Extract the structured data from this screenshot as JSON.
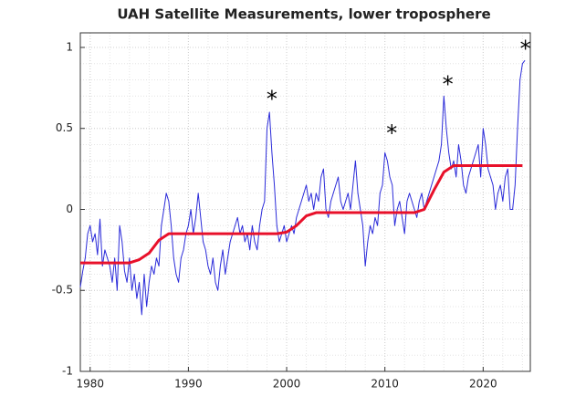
{
  "chart_data": {
    "type": "line",
    "title": "UAH Satellite Measurements, lower troposphere",
    "xlim": [
      1979,
      2024.8
    ],
    "ylim": [
      -1,
      1.09
    ],
    "xticks": [
      1980,
      1990,
      2000,
      2010,
      2020
    ],
    "yticks": [
      -1,
      -0.5,
      0,
      0.5,
      1
    ],
    "grid": true,
    "series": [
      {
        "color": "#2b2bd9",
        "x": [
          1979,
          1979.25,
          1979.5,
          1979.75,
          1980,
          1980.25,
          1980.5,
          1980.75,
          1981,
          1981.25,
          1981.5,
          1981.75,
          1982,
          1982.25,
          1982.5,
          1982.75,
          1983,
          1983.25,
          1983.5,
          1983.75,
          1984,
          1984.25,
          1984.5,
          1984.75,
          1985,
          1985.25,
          1985.5,
          1985.75,
          1986,
          1986.25,
          1986.5,
          1986.75,
          1987,
          1987.25,
          1987.5,
          1987.75,
          1988,
          1988.25,
          1988.5,
          1988.75,
          1989,
          1989.25,
          1989.5,
          1989.75,
          1990,
          1990.25,
          1990.5,
          1990.75,
          1991,
          1991.25,
          1991.5,
          1991.75,
          1992,
          1992.25,
          1992.5,
          1992.75,
          1993,
          1993.25,
          1993.5,
          1993.75,
          1994,
          1994.25,
          1994.5,
          1994.75,
          1995,
          1995.25,
          1995.5,
          1995.75,
          1996,
          1996.25,
          1996.5,
          1996.75,
          1997,
          1997.25,
          1997.5,
          1997.75,
          1998,
          1998.25,
          1998.5,
          1998.75,
          1999,
          1999.25,
          1999.5,
          1999.75,
          2000,
          2000.25,
          2000.5,
          2000.75,
          2001,
          2001.25,
          2001.5,
          2001.75,
          2002,
          2002.25,
          2002.5,
          2002.75,
          2003,
          2003.25,
          2003.5,
          2003.75,
          2004,
          2004.25,
          2004.5,
          2004.75,
          2005,
          2005.25,
          2005.5,
          2005.75,
          2006,
          2006.25,
          2006.5,
          2006.75,
          2007,
          2007.25,
          2007.5,
          2007.75,
          2008,
          2008.25,
          2008.5,
          2008.75,
          2009,
          2009.25,
          2009.5,
          2009.75,
          2010,
          2010.25,
          2010.5,
          2010.75,
          2011,
          2011.25,
          2011.5,
          2011.75,
          2012,
          2012.25,
          2012.5,
          2012.75,
          2013,
          2013.25,
          2013.5,
          2013.75,
          2014,
          2014.25,
          2014.5,
          2014.75,
          2015,
          2015.25,
          2015.5,
          2015.75,
          2016,
          2016.25,
          2016.5,
          2016.75,
          2017,
          2017.25,
          2017.5,
          2017.75,
          2018,
          2018.25,
          2018.5,
          2018.75,
          2019,
          2019.25,
          2019.5,
          2019.75,
          2020,
          2020.25,
          2020.5,
          2020.75,
          2021,
          2021.25,
          2021.5,
          2021.75,
          2022,
          2022.25,
          2022.5,
          2022.75,
          2023,
          2023.25,
          2023.5,
          2023.75,
          2024,
          2024.25
        ],
        "values": [
          -0.48,
          -0.38,
          -0.3,
          -0.15,
          -0.1,
          -0.2,
          -0.15,
          -0.28,
          -0.06,
          -0.35,
          -0.25,
          -0.3,
          -0.35,
          -0.45,
          -0.3,
          -0.5,
          -0.1,
          -0.2,
          -0.38,
          -0.45,
          -0.3,
          -0.5,
          -0.4,
          -0.55,
          -0.45,
          -0.65,
          -0.4,
          -0.6,
          -0.45,
          -0.35,
          -0.4,
          -0.3,
          -0.35,
          -0.1,
          0,
          0.1,
          0.05,
          -0.1,
          -0.3,
          -0.4,
          -0.45,
          -0.3,
          -0.25,
          -0.15,
          -0.1,
          0,
          -0.15,
          -0.05,
          0.1,
          -0.05,
          -0.2,
          -0.25,
          -0.35,
          -0.4,
          -0.3,
          -0.45,
          -0.5,
          -0.35,
          -0.25,
          -0.4,
          -0.3,
          -0.2,
          -0.15,
          -0.1,
          -0.05,
          -0.15,
          -0.1,
          -0.2,
          -0.15,
          -0.25,
          -0.1,
          -0.2,
          -0.25,
          -0.1,
          0,
          0.05,
          0.5,
          0.6,
          0.35,
          0.15,
          -0.1,
          -0.2,
          -0.15,
          -0.1,
          -0.2,
          -0.15,
          -0.1,
          -0.15,
          -0.05,
          0,
          0.05,
          0.1,
          0.15,
          0.05,
          0.1,
          0,
          0.1,
          0.05,
          0.2,
          0.25,
          0,
          -0.05,
          0.05,
          0.1,
          0.15,
          0.2,
          0.05,
          0,
          0.05,
          0.1,
          0,
          0.15,
          0.3,
          0.1,
          0,
          -0.1,
          -0.35,
          -0.2,
          -0.1,
          -0.15,
          -0.05,
          -0.1,
          0.1,
          0.15,
          0.35,
          0.3,
          0.2,
          0.15,
          -0.1,
          0,
          0.05,
          -0.05,
          -0.15,
          0.05,
          0.1,
          0.05,
          0,
          -0.05,
          0.05,
          0.1,
          0,
          0.05,
          0.1,
          0.15,
          0.2,
          0.25,
          0.3,
          0.4,
          0.7,
          0.5,
          0.35,
          0.25,
          0.3,
          0.2,
          0.4,
          0.3,
          0.15,
          0.1,
          0.2,
          0.25,
          0.3,
          0.35,
          0.4,
          0.2,
          0.5,
          0.4,
          0.25,
          0.2,
          0.15,
          0,
          0.1,
          0.15,
          0.05,
          0.2,
          0.25,
          0,
          0,
          0.15,
          0.5,
          0.8,
          0.9,
          0.92
        ]
      },
      {
        "color": "#e8102a",
        "x": [
          1979,
          1984,
          1985,
          1986,
          1987,
          1988,
          1999,
          2000,
          2001,
          2002,
          2003,
          2013,
          2014,
          2015,
          2016,
          2017,
          2024
        ],
        "values": [
          -0.33,
          -0.33,
          -0.31,
          -0.27,
          -0.19,
          -0.15,
          -0.15,
          -0.14,
          -0.1,
          -0.04,
          -0.02,
          -0.02,
          0,
          0.12,
          0.23,
          0.27,
          0.27
        ]
      }
    ],
    "annotations": [
      {
        "text": "*",
        "x": 1998.5,
        "y": 0.72
      },
      {
        "text": "*",
        "x": 2010.7,
        "y": 0.51
      },
      {
        "text": "*",
        "x": 2016.4,
        "y": 0.81
      },
      {
        "text": "*",
        "x": 2024.3,
        "y": 1.03
      }
    ]
  }
}
